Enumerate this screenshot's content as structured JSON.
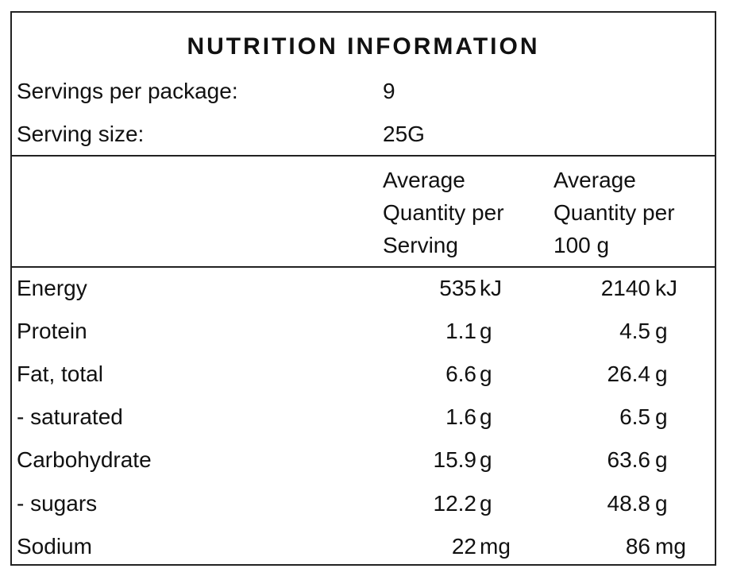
{
  "title": "NUTRITION INFORMATION",
  "servings_label": "Servings per package:",
  "servings_value": "9",
  "serving_size_label": "Serving size:",
  "serving_size_value": "25G",
  "header": {
    "col1": [
      "Average",
      "Quantity per",
      "Serving"
    ],
    "col2": [
      "Average",
      "Quantity per",
      "100 g"
    ]
  },
  "rows": [
    {
      "label": "Energy",
      "per_serving": "535",
      "per_serving_unit": "kJ",
      "per_100g": "2140",
      "per_100g_unit": "kJ"
    },
    {
      "label": "Protein",
      "per_serving": "1.1",
      "per_serving_unit": "g",
      "per_100g": "4.5",
      "per_100g_unit": "g"
    },
    {
      "label": "Fat, total",
      "per_serving": "6.6",
      "per_serving_unit": "g",
      "per_100g": "26.4",
      "per_100g_unit": "g"
    },
    {
      "label": "- saturated",
      "per_serving": "1.6",
      "per_serving_unit": "g",
      "per_100g": "6.5",
      "per_100g_unit": "g"
    },
    {
      "label": "Carbohydrate",
      "per_serving": "15.9",
      "per_serving_unit": "g",
      "per_100g": "63.6",
      "per_100g_unit": "g"
    },
    {
      "label": "- sugars",
      "per_serving": "12.2",
      "per_serving_unit": "g",
      "per_100g": "48.8",
      "per_100g_unit": "g"
    },
    {
      "label": "Sodium",
      "per_serving": "22",
      "per_serving_unit": "mg",
      "per_100g": "86",
      "per_100g_unit": "mg"
    }
  ]
}
